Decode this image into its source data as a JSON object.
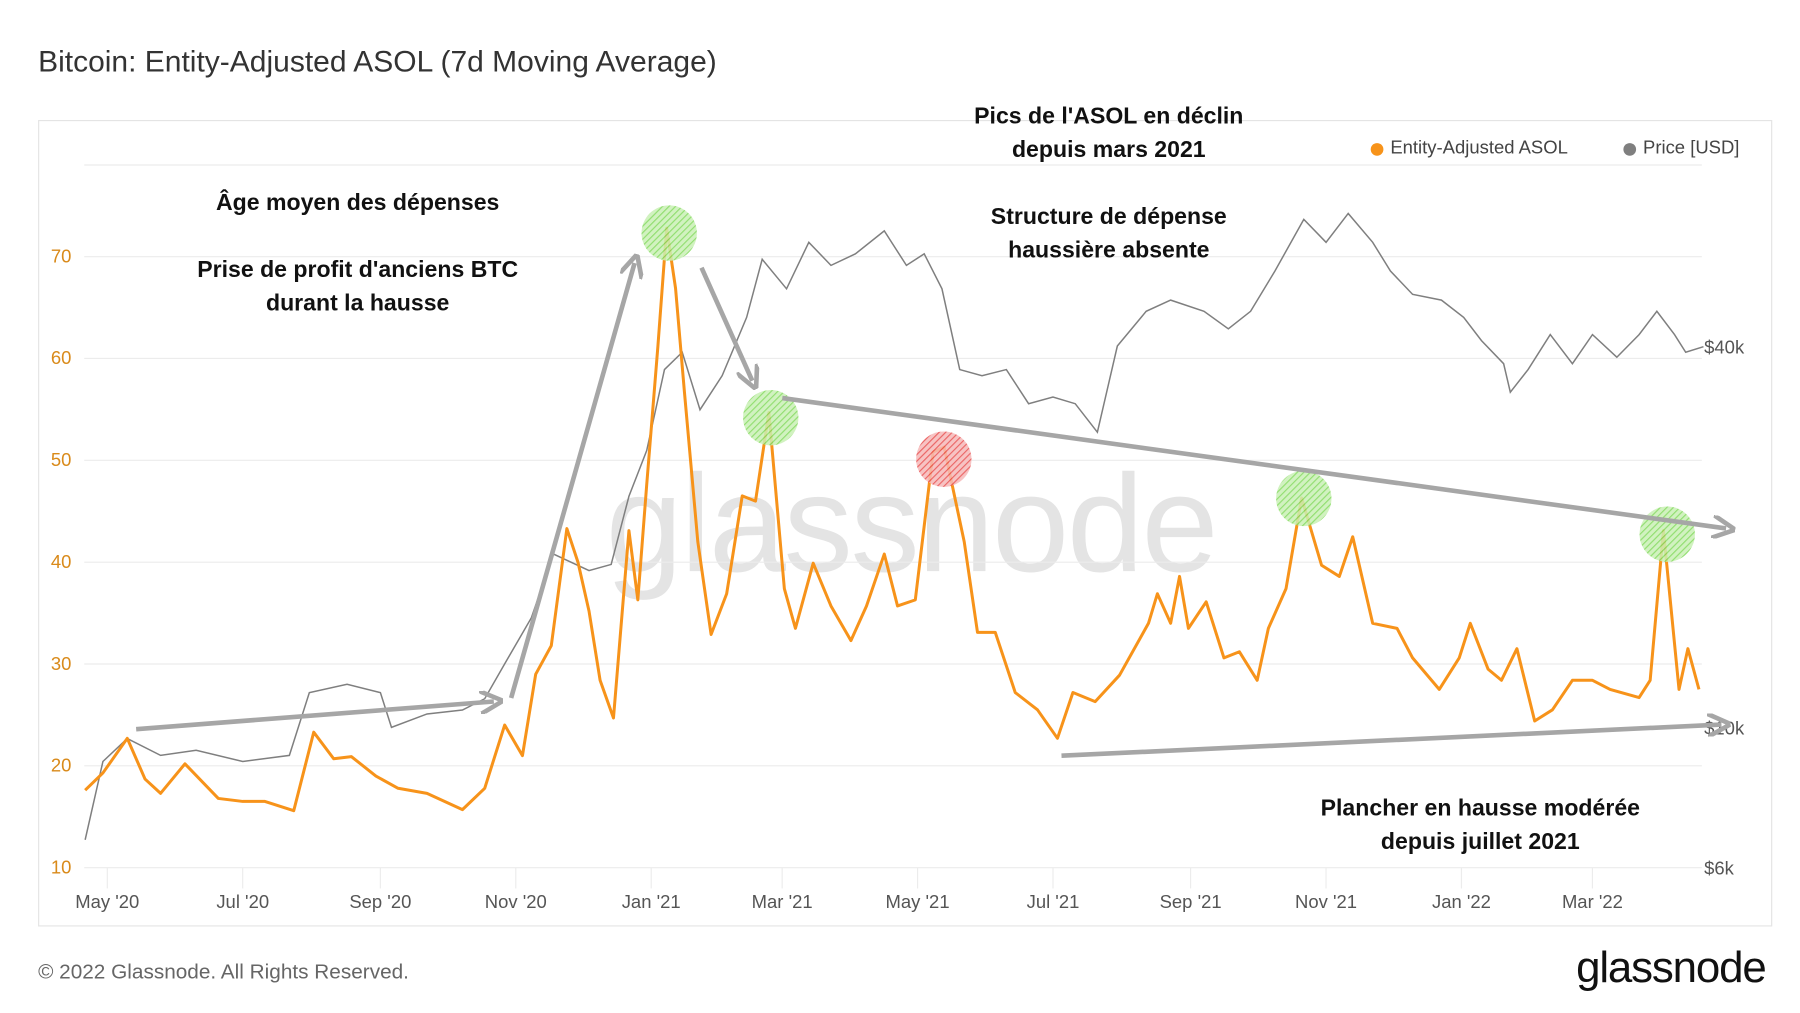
{
  "title": "Bitcoin: Entity-Adjusted ASOL (7d Moving Average)",
  "watermark": "glassnode",
  "footer": {
    "copyright": "© 2022 Glassnode. All Rights Reserved.",
    "logo": "glassnode"
  },
  "annotations": {
    "left_title": "Âge moyen des dépenses",
    "left_body_1": "Prise de profit d'anciens BTC",
    "left_body_2": "durant la hausse",
    "top_1": "Pics de l'ASOL en déclin",
    "top_2": "depuis mars 2021",
    "mid_1": "Structure de dépense",
    "mid_2": "haussière absente",
    "bottom_1": "Plancher en hausse modérée",
    "bottom_2": "depuis juillet 2021"
  },
  "colors": {
    "asol": "#f7931a",
    "price": "#7f7f7f",
    "peak_green": "#7ed957",
    "peak_red": "#e84a4a",
    "arrow": "#a6a6a6"
  },
  "chart_data": {
    "type": "line",
    "title": "Bitcoin: Entity-Adjusted ASOL (7d Moving Average)",
    "legend_position": "top-right",
    "grid": true,
    "x_ticks": [
      "May '20",
      "Jul '20",
      "Sep '20",
      "Nov '20",
      "Jan '21",
      "Mar '21",
      "May '21",
      "Jul '21",
      "Sep '21",
      "Nov '21",
      "Jan '22",
      "Mar '22"
    ],
    "y_left": {
      "ticks": [
        "10",
        "20",
        "30",
        "40",
        "50",
        "60",
        "70"
      ],
      "ylim": [
        10,
        79
      ]
    },
    "y_right": {
      "scale": "log",
      "ticks": [
        "$6k",
        "$10k",
        "$40k"
      ]
    },
    "series": [
      {
        "name": "Entity-Adjusted ASOL",
        "axis": "left",
        "points": [
          [
            "2020-04-21",
            17.6
          ],
          [
            "2020-04-29",
            19.3
          ],
          [
            "2020-05-10",
            22.7
          ],
          [
            "2020-05-18",
            18.7
          ],
          [
            "2020-05-25",
            17.3
          ],
          [
            "2020-06-05",
            20.2
          ],
          [
            "2020-06-20",
            16.8
          ],
          [
            "2020-07-01",
            16.5
          ],
          [
            "2020-07-11",
            16.5
          ],
          [
            "2020-07-24",
            15.6
          ],
          [
            "2020-08-02",
            23.3
          ],
          [
            "2020-08-11",
            20.7
          ],
          [
            "2020-08-19",
            20.9
          ],
          [
            "2020-08-30",
            19.0
          ],
          [
            "2020-09-09",
            17.8
          ],
          [
            "2020-09-22",
            17.3
          ],
          [
            "2020-10-08",
            15.7
          ],
          [
            "2020-10-18",
            17.8
          ],
          [
            "2020-10-27",
            24.0
          ],
          [
            "2020-11-04",
            21.0
          ],
          [
            "2020-11-10",
            29.0
          ],
          [
            "2020-11-17",
            31.8
          ],
          [
            "2020-11-24",
            43.3
          ],
          [
            "2020-11-29",
            40.0
          ],
          [
            "2020-12-04",
            35.2
          ],
          [
            "2020-12-09",
            28.4
          ],
          [
            "2020-12-15",
            24.7
          ],
          [
            "2020-12-22",
            43.1
          ],
          [
            "2020-12-26",
            36.3
          ],
          [
            "2020-12-30",
            47.6
          ],
          [
            "2021-01-04",
            61.2
          ],
          [
            "2021-01-08",
            72.8
          ],
          [
            "2021-01-12",
            66.9
          ],
          [
            "2021-01-16",
            56.7
          ],
          [
            "2021-01-22",
            42.0
          ],
          [
            "2021-01-28",
            32.9
          ],
          [
            "2021-02-04",
            36.9
          ],
          [
            "2021-02-11",
            46.5
          ],
          [
            "2021-02-17",
            46.0
          ],
          [
            "2021-02-23",
            54.7
          ],
          [
            "2021-03-02",
            37.4
          ],
          [
            "2021-03-07",
            33.5
          ],
          [
            "2021-03-15",
            39.9
          ],
          [
            "2021-03-23",
            35.7
          ],
          [
            "2021-04-01",
            32.3
          ],
          [
            "2021-04-08",
            35.7
          ],
          [
            "2021-04-16",
            40.8
          ],
          [
            "2021-04-22",
            35.7
          ],
          [
            "2021-04-30",
            36.3
          ],
          [
            "2021-05-08",
            50.8
          ],
          [
            "2021-05-13",
            51.3
          ],
          [
            "2021-05-22",
            42.0
          ],
          [
            "2021-05-28",
            33.1
          ],
          [
            "2021-06-05",
            33.1
          ],
          [
            "2021-06-14",
            27.2
          ],
          [
            "2021-06-24",
            25.5
          ],
          [
            "2021-07-03",
            22.7
          ],
          [
            "2021-07-10",
            27.2
          ],
          [
            "2021-07-20",
            26.3
          ],
          [
            "2021-07-31",
            28.9
          ],
          [
            "2021-08-13",
            34.0
          ],
          [
            "2021-08-17",
            36.9
          ],
          [
            "2021-08-23",
            34.0
          ],
          [
            "2021-08-27",
            38.6
          ],
          [
            "2021-08-31",
            33.5
          ],
          [
            "2021-09-08",
            36.1
          ],
          [
            "2021-09-16",
            30.6
          ],
          [
            "2021-09-23",
            31.2
          ],
          [
            "2021-10-01",
            28.4
          ],
          [
            "2021-10-06",
            33.5
          ],
          [
            "2021-10-14",
            37.4
          ],
          [
            "2021-10-21",
            46.3
          ],
          [
            "2021-10-30",
            39.7
          ],
          [
            "2021-11-07",
            38.6
          ],
          [
            "2021-11-13",
            42.5
          ],
          [
            "2021-11-22",
            34.0
          ],
          [
            "2021-12-03",
            33.5
          ],
          [
            "2021-12-10",
            30.6
          ],
          [
            "2021-12-22",
            27.5
          ],
          [
            "2021-12-31",
            30.6
          ],
          [
            "2022-01-05",
            34.0
          ],
          [
            "2022-01-13",
            29.5
          ],
          [
            "2022-01-19",
            28.4
          ],
          [
            "2022-01-26",
            31.5
          ],
          [
            "2022-02-03",
            24.4
          ],
          [
            "2022-02-11",
            25.5
          ],
          [
            "2022-02-20",
            28.4
          ],
          [
            "2022-03-01",
            28.4
          ],
          [
            "2022-03-09",
            27.5
          ],
          [
            "2022-03-22",
            26.7
          ],
          [
            "2022-03-27",
            28.4
          ],
          [
            "2022-04-02",
            43.1
          ],
          [
            "2022-04-09",
            27.5
          ],
          [
            "2022-04-13",
            31.5
          ],
          [
            "2022-04-18",
            27.5
          ]
        ]
      },
      {
        "name": "Price [USD]",
        "axis": "right",
        "points": [
          [
            "2020-04-21",
            6640
          ],
          [
            "2020-04-29",
            8830
          ],
          [
            "2020-05-10",
            9600
          ],
          [
            "2020-05-25",
            9030
          ],
          [
            "2020-06-10",
            9200
          ],
          [
            "2020-07-01",
            8830
          ],
          [
            "2020-07-22",
            9030
          ],
          [
            "2020-07-31",
            11350
          ],
          [
            "2020-08-17",
            11700
          ],
          [
            "2020-09-01",
            11350
          ],
          [
            "2020-09-06",
            10000
          ],
          [
            "2020-09-22",
            10500
          ],
          [
            "2020-10-08",
            10650
          ],
          [
            "2020-10-18",
            11100
          ],
          [
            "2020-10-27",
            12600
          ],
          [
            "2020-11-08",
            14900
          ],
          [
            "2020-11-18",
            18800
          ],
          [
            "2020-12-04",
            17700
          ],
          [
            "2020-12-14",
            18100
          ],
          [
            "2020-12-22",
            23200
          ],
          [
            "2020-12-30",
            27400
          ],
          [
            "2021-01-07",
            36800
          ],
          [
            "2021-01-15",
            39200
          ],
          [
            "2021-01-23",
            31800
          ],
          [
            "2021-02-02",
            36000
          ],
          [
            "2021-02-13",
            44500
          ],
          [
            "2021-02-20",
            55000
          ],
          [
            "2021-03-03",
            49400
          ],
          [
            "2021-03-13",
            58500
          ],
          [
            "2021-03-23",
            53800
          ],
          [
            "2021-04-03",
            56100
          ],
          [
            "2021-04-16",
            61000
          ],
          [
            "2021-04-26",
            53800
          ],
          [
            "2021-05-04",
            56100
          ],
          [
            "2021-05-12",
            49400
          ],
          [
            "2021-05-20",
            36800
          ],
          [
            "2021-05-30",
            36000
          ],
          [
            "2021-06-10",
            36800
          ],
          [
            "2021-06-20",
            32500
          ],
          [
            "2021-07-01",
            33300
          ],
          [
            "2021-07-11",
            32500
          ],
          [
            "2021-07-21",
            29300
          ],
          [
            "2021-07-30",
            40100
          ],
          [
            "2021-08-12",
            45500
          ],
          [
            "2021-08-23",
            47400
          ],
          [
            "2021-09-07",
            45500
          ],
          [
            "2021-09-18",
            42700
          ],
          [
            "2021-09-28",
            45500
          ],
          [
            "2021-10-09",
            52700
          ],
          [
            "2021-10-22",
            63600
          ],
          [
            "2021-11-01",
            58500
          ],
          [
            "2021-11-11",
            65000
          ],
          [
            "2021-11-22",
            58500
          ],
          [
            "2021-11-30",
            52700
          ],
          [
            "2021-12-10",
            48400
          ],
          [
            "2021-12-23",
            47400
          ],
          [
            "2022-01-02",
            44500
          ],
          [
            "2022-01-10",
            40900
          ],
          [
            "2022-01-20",
            37600
          ],
          [
            "2022-01-23",
            33900
          ],
          [
            "2022-01-31",
            36800
          ],
          [
            "2022-02-10",
            41800
          ],
          [
            "2022-02-20",
            37600
          ],
          [
            "2022-03-01",
            41800
          ],
          [
            "2022-03-12",
            38500
          ],
          [
            "2022-03-22",
            41800
          ],
          [
            "2022-03-30",
            45500
          ],
          [
            "2022-04-07",
            41800
          ],
          [
            "2022-04-12",
            39200
          ],
          [
            "2022-04-20",
            40000
          ]
        ]
      }
    ]
  }
}
